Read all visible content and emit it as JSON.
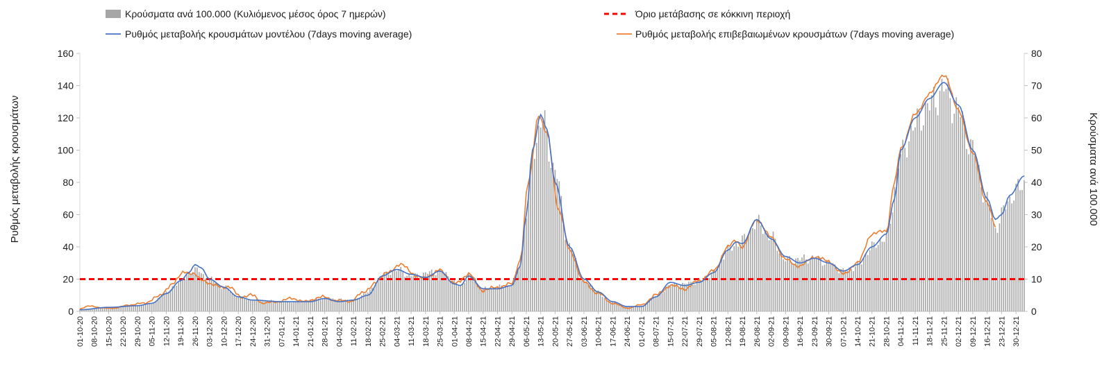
{
  "chart_data": {
    "type": "bar+line",
    "title": "",
    "legend": {
      "bars": "Κρούσματα ανά 100.000 (Κυλιόμενος μέσος όρος 7 ημερών)",
      "threshold": "Όριο μετάβασης σε κόκκινη περιοχή",
      "model_line": "Ρυθμός μεταβολής κρουσμάτων μοντέλου (7days moving average)",
      "confirmed_line": "Ρυθμός μεταβολής επιβεβαιωμένων κρουσμάτων (7days moving average)"
    },
    "ylabel_left": "Ρυθμός μεταβολής κρουσμάτων",
    "ylabel_right": "Κρούσματα ανά 100.000",
    "ylim_left": [
      0,
      160
    ],
    "ylim_right": [
      0,
      80
    ],
    "yticks_left": [
      "0",
      "20",
      "40",
      "60",
      "80",
      "100",
      "120",
      "140",
      "160"
    ],
    "yticks_right": [
      "0",
      "10",
      "20",
      "30",
      "40",
      "50",
      "60",
      "70",
      "80"
    ],
    "x_start": "2020-10-01",
    "x_end": "2022-01-03",
    "x_tick_step_days": 7,
    "threshold_value": 20,
    "colors": {
      "bars": "#a6a6a6",
      "threshold": "#ff0000",
      "model": "#4472c4",
      "confirmed": "#ed7d31"
    },
    "model_keypoints": [
      [
        "2020-10-01",
        1
      ],
      [
        "2020-10-15",
        2.5
      ],
      [
        "2020-10-29",
        3.5
      ],
      [
        "2020-11-05",
        5
      ],
      [
        "2020-11-12",
        11
      ],
      [
        "2020-11-19",
        19
      ],
      [
        "2020-11-23",
        24
      ],
      [
        "2020-11-26",
        29
      ],
      [
        "2020-11-29",
        27
      ],
      [
        "2020-12-03",
        20
      ],
      [
        "2020-12-10",
        15
      ],
      [
        "2020-12-17",
        9
      ],
      [
        "2020-12-24",
        7
      ],
      [
        "2021-01-07",
        6
      ],
      [
        "2021-01-14",
        6
      ],
      [
        "2021-01-21",
        6
      ],
      [
        "2021-01-28",
        8
      ],
      [
        "2021-02-04",
        6
      ],
      [
        "2021-02-11",
        7
      ],
      [
        "2021-02-18",
        10
      ],
      [
        "2021-02-25",
        22
      ],
      [
        "2021-03-04",
        26
      ],
      [
        "2021-03-11",
        23
      ],
      [
        "2021-03-18",
        21
      ],
      [
        "2021-03-25",
        25
      ],
      [
        "2021-04-01",
        17
      ],
      [
        "2021-04-04",
        16
      ],
      [
        "2021-04-08",
        22
      ],
      [
        "2021-04-15",
        14
      ],
      [
        "2021-04-22",
        14
      ],
      [
        "2021-04-29",
        16
      ],
      [
        "2021-05-03",
        28
      ],
      [
        "2021-05-06",
        60
      ],
      [
        "2021-05-09",
        100
      ],
      [
        "2021-05-13",
        122
      ],
      [
        "2021-05-16",
        113
      ],
      [
        "2021-05-20",
        80
      ],
      [
        "2021-05-27",
        40
      ],
      [
        "2021-06-03",
        20
      ],
      [
        "2021-06-10",
        12
      ],
      [
        "2021-06-17",
        6
      ],
      [
        "2021-06-24",
        3
      ],
      [
        "2021-07-01",
        3
      ],
      [
        "2021-07-08",
        9
      ],
      [
        "2021-07-15",
        18
      ],
      [
        "2021-07-22",
        16
      ],
      [
        "2021-07-29",
        18
      ],
      [
        "2021-08-05",
        24
      ],
      [
        "2021-08-12",
        38
      ],
      [
        "2021-08-16",
        43
      ],
      [
        "2021-08-19",
        42
      ],
      [
        "2021-08-26",
        57
      ],
      [
        "2021-09-02",
        45
      ],
      [
        "2021-09-09",
        34
      ],
      [
        "2021-09-16",
        30
      ],
      [
        "2021-09-23",
        33
      ],
      [
        "2021-09-30",
        30
      ],
      [
        "2021-10-07",
        25
      ],
      [
        "2021-10-14",
        29
      ],
      [
        "2021-10-21",
        40
      ],
      [
        "2021-10-28",
        48
      ],
      [
        "2021-11-01",
        70
      ],
      [
        "2021-11-04",
        100
      ],
      [
        "2021-11-11",
        120
      ],
      [
        "2021-11-18",
        132
      ],
      [
        "2021-11-25",
        142
      ],
      [
        "2021-12-02",
        128
      ],
      [
        "2021-12-09",
        100
      ],
      [
        "2021-12-16",
        70
      ],
      [
        "2021-12-20",
        57
      ],
      [
        "2021-12-23",
        60
      ],
      [
        "2021-12-27",
        72
      ],
      [
        "2022-01-03",
        84
      ]
    ],
    "confirmed_keypoints": [
      [
        "2020-10-01",
        1.5
      ],
      [
        "2020-10-06",
        3.5
      ],
      [
        "2020-10-12",
        2
      ],
      [
        "2020-10-18",
        2
      ],
      [
        "2020-10-25",
        4
      ],
      [
        "2020-11-01",
        5
      ],
      [
        "2020-11-08",
        9
      ],
      [
        "2020-11-15",
        17
      ],
      [
        "2020-11-21",
        25
      ],
      [
        "2020-11-25",
        23
      ],
      [
        "2020-11-29",
        20
      ],
      [
        "2020-12-05",
        16
      ],
      [
        "2020-12-12",
        15
      ],
      [
        "2020-12-19",
        9
      ],
      [
        "2020-12-24",
        10
      ],
      [
        "2020-12-29",
        5
      ],
      [
        "2021-01-05",
        6
      ],
      [
        "2021-01-12",
        8
      ],
      [
        "2021-01-19",
        6
      ],
      [
        "2021-01-26",
        9
      ],
      [
        "2021-02-02",
        7
      ],
      [
        "2021-02-09",
        6
      ],
      [
        "2021-02-15",
        11
      ],
      [
        "2021-02-22",
        18
      ],
      [
        "2021-02-28",
        25
      ],
      [
        "2021-03-07",
        29
      ],
      [
        "2021-03-14",
        21
      ],
      [
        "2021-03-21",
        22
      ],
      [
        "2021-03-25",
        26
      ],
      [
        "2021-04-01",
        17
      ],
      [
        "2021-04-08",
        23
      ],
      [
        "2021-04-15",
        13
      ],
      [
        "2021-04-22",
        15
      ],
      [
        "2021-04-29",
        17
      ],
      [
        "2021-05-03",
        32
      ],
      [
        "2021-05-07",
        80
      ],
      [
        "2021-05-12",
        122
      ],
      [
        "2021-05-16",
        110
      ],
      [
        "2021-05-22",
        62
      ],
      [
        "2021-05-27",
        38
      ],
      [
        "2021-06-03",
        18
      ],
      [
        "2021-06-10",
        11
      ],
      [
        "2021-06-17",
        5
      ],
      [
        "2021-06-24",
        2
      ],
      [
        "2021-07-01",
        4
      ],
      [
        "2021-07-08",
        10
      ],
      [
        "2021-07-15",
        16
      ],
      [
        "2021-07-22",
        14
      ],
      [
        "2021-07-29",
        19
      ],
      [
        "2021-08-05",
        25
      ],
      [
        "2021-08-12",
        40
      ],
      [
        "2021-08-16",
        44
      ],
      [
        "2021-08-19",
        40
      ],
      [
        "2021-08-26",
        57
      ],
      [
        "2021-09-02",
        46
      ],
      [
        "2021-09-09",
        32
      ],
      [
        "2021-09-16",
        28
      ],
      [
        "2021-09-23",
        34
      ],
      [
        "2021-09-30",
        31
      ],
      [
        "2021-10-07",
        23
      ],
      [
        "2021-10-14",
        30
      ],
      [
        "2021-10-21",
        48
      ],
      [
        "2021-10-28",
        50
      ],
      [
        "2021-11-01",
        80
      ],
      [
        "2021-11-04",
        101
      ],
      [
        "2021-11-11",
        122
      ],
      [
        "2021-11-18",
        135
      ],
      [
        "2021-11-25",
        147
      ],
      [
        "2021-12-02",
        125
      ],
      [
        "2021-12-09",
        98
      ],
      [
        "2021-12-16",
        67
      ],
      [
        "2021-12-20",
        53
      ]
    ],
    "bars_keypoints": [
      [
        "2020-10-01",
        0.6
      ],
      [
        "2020-10-15",
        1.2
      ],
      [
        "2020-10-29",
        1.8
      ],
      [
        "2020-11-05",
        2.5
      ],
      [
        "2020-11-12",
        6
      ],
      [
        "2020-11-19",
        9.5
      ],
      [
        "2020-11-26",
        13
      ],
      [
        "2020-12-03",
        10
      ],
      [
        "2020-12-10",
        7.5
      ],
      [
        "2020-12-17",
        4.5
      ],
      [
        "2020-12-24",
        3.5
      ],
      [
        "2021-01-14",
        3
      ],
      [
        "2021-01-28",
        4
      ],
      [
        "2021-02-11",
        3.5
      ],
      [
        "2021-02-18",
        6
      ],
      [
        "2021-02-25",
        11
      ],
      [
        "2021-03-04",
        13
      ],
      [
        "2021-03-11",
        11
      ],
      [
        "2021-03-25",
        12.5
      ],
      [
        "2021-04-04",
        8
      ],
      [
        "2021-04-08",
        11
      ],
      [
        "2021-04-15",
        7
      ],
      [
        "2021-04-29",
        8
      ],
      [
        "2021-05-03",
        15
      ],
      [
        "2021-05-06",
        30
      ],
      [
        "2021-05-10",
        52
      ],
      [
        "2021-05-14",
        59
      ],
      [
        "2021-05-20",
        43
      ],
      [
        "2021-05-27",
        20
      ],
      [
        "2021-06-03",
        9
      ],
      [
        "2021-06-17",
        3
      ],
      [
        "2021-06-24",
        1.5
      ],
      [
        "2021-07-01",
        1.5
      ],
      [
        "2021-07-08",
        4.5
      ],
      [
        "2021-07-15",
        8
      ],
      [
        "2021-07-29",
        9
      ],
      [
        "2021-08-05",
        12
      ],
      [
        "2021-08-12",
        19
      ],
      [
        "2021-08-19",
        22
      ],
      [
        "2021-08-26",
        27.5
      ],
      [
        "2021-09-02",
        23
      ],
      [
        "2021-09-09",
        16
      ],
      [
        "2021-09-23",
        16.5
      ],
      [
        "2021-09-30",
        15
      ],
      [
        "2021-10-07",
        12.5
      ],
      [
        "2021-10-14",
        14
      ],
      [
        "2021-10-21",
        20
      ],
      [
        "2021-10-28",
        23
      ],
      [
        "2021-11-04",
        48
      ],
      [
        "2021-11-11",
        58
      ],
      [
        "2021-11-18",
        64
      ],
      [
        "2021-11-25",
        69
      ],
      [
        "2021-12-02",
        62
      ],
      [
        "2021-12-09",
        50
      ],
      [
        "2021-12-16",
        34
      ],
      [
        "2021-12-20",
        26
      ],
      [
        "2021-12-27",
        35
      ],
      [
        "2022-01-03",
        40
      ]
    ]
  }
}
